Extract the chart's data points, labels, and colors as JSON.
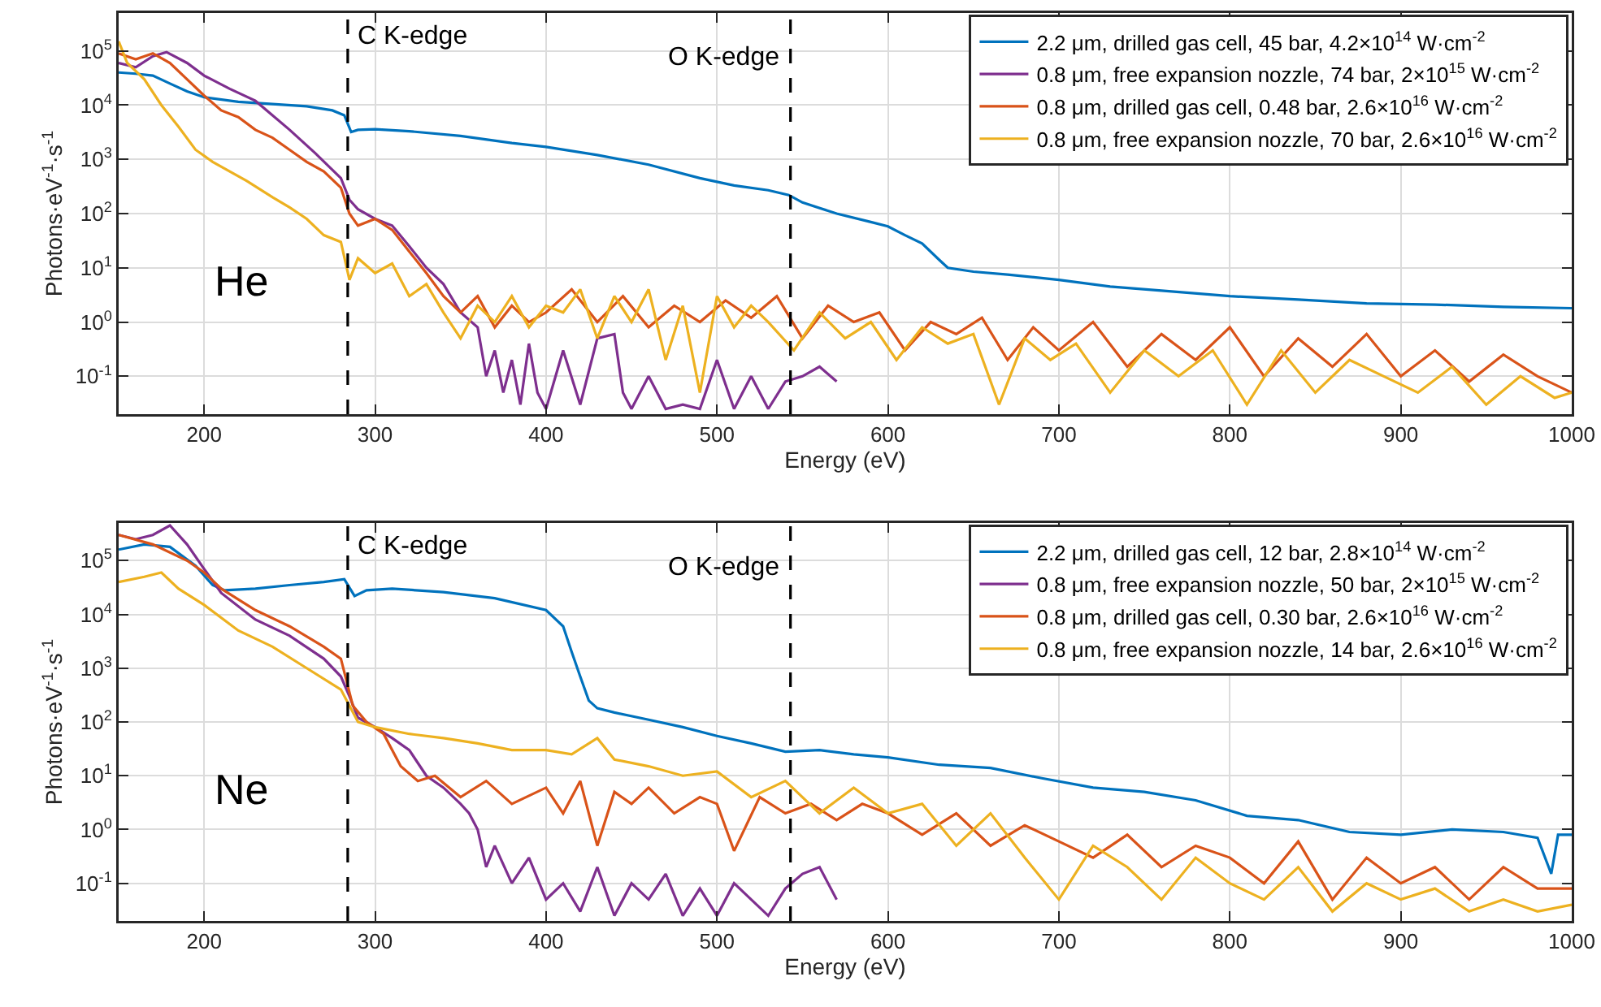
{
  "chart_data": [
    {
      "type": "line",
      "xlabel": "Energy (eV)",
      "ylabel": "Photons·eV$^{-1}$·s$^{-1}$",
      "log": "y",
      "grid": true,
      "legend": "top right",
      "xlim": [
        150,
        1000
      ],
      "xticks": [
        200,
        300,
        400,
        500,
        600,
        700,
        800,
        900,
        1000
      ],
      "ylim": [
        0.02,
        500000
      ],
      "yticks": [
        {
          "value": 0.1,
          "label": "10$^{-1}$"
        },
        {
          "value": 1,
          "label": "10$^{0}$"
        },
        {
          "value": 10,
          "label": "10$^{1}$"
        },
        {
          "value": 100,
          "label": "10$^{2}$"
        },
        {
          "value": 1000,
          "label": "10$^{3}$"
        },
        {
          "value": 10000,
          "label": "10$^{4}$"
        },
        {
          "value": 100000,
          "label": "10$^{5}$"
        }
      ],
      "ref_lines": [
        {
          "axis": "x",
          "value": 284,
          "label": "C K-edge",
          "color": "#000000",
          "line_style": "dashed"
        },
        {
          "axis": "x",
          "value": 543,
          "label": "O K-edge",
          "color": "#000000",
          "line_style": "dashed"
        }
      ],
      "annotations": [
        "He"
      ],
      "series": [
        {
          "name": "2.2 μm, drilled gas cell, 45 bar, 4.2×10$^{14}$ W·cm$^{-2}$",
          "color": "#0072bd",
          "x": [
            150,
            160,
            170,
            180,
            190,
            200,
            220,
            240,
            260,
            275,
            282,
            286,
            290,
            300,
            320,
            350,
            380,
            400,
            430,
            460,
            490,
            510,
            530,
            542,
            550,
            570,
            590,
            600,
            610,
            620,
            630,
            635,
            650,
            670,
            700,
            730,
            760,
            800,
            840,
            880,
            920,
            960,
            1000
          ],
          "values": [
            40000,
            38000,
            35000,
            25000,
            18000,
            14000,
            11500,
            10500,
            9500,
            8000,
            6500,
            3200,
            3500,
            3600,
            3300,
            2700,
            2000,
            1700,
            1200,
            800,
            450,
            330,
            270,
            220,
            160,
            100,
            70,
            58,
            40,
            28,
            14,
            10,
            8.5,
            7.5,
            6,
            4.5,
            3.8,
            3,
            2.6,
            2.2,
            2.1,
            1.9,
            1.8
          ]
        },
        {
          "name": "0.8 μm, free expansion nozzle, 74 bar, 2×10$^{15}$ W·cm$^{-2}$",
          "color": "#7e2f8e",
          "x": [
            150,
            160,
            170,
            178,
            190,
            200,
            215,
            230,
            250,
            265,
            280,
            285,
            290,
            300,
            310,
            320,
            330,
            340,
            350,
            360,
            365,
            370,
            375,
            380,
            385,
            390,
            395,
            400,
            410,
            420,
            430,
            440,
            445,
            450,
            460,
            470,
            480,
            490,
            500,
            510,
            520,
            530,
            540,
            550,
            560,
            570
          ],
          "values": [
            60000,
            50000,
            80000,
            95000,
            60000,
            35000,
            20000,
            12000,
            3500,
            1300,
            450,
            180,
            120,
            80,
            60,
            25,
            10,
            5,
            1.5,
            0.8,
            0.1,
            0.3,
            0.05,
            0.2,
            0.03,
            0.4,
            0.05,
            0.025,
            0.3,
            0.03,
            0.5,
            0.6,
            0.05,
            0.025,
            0.1,
            0.025,
            0.03,
            0.025,
            0.2,
            0.025,
            0.1,
            0.025,
            0.08,
            0.1,
            0.15,
            0.08
          ]
        },
        {
          "name": "0.8 μm, drilled gas cell, 0.48 bar, 2.6×10$^{16}$ W·cm$^{-2}$",
          "color": "#d95319",
          "x": [
            150,
            160,
            170,
            180,
            190,
            200,
            210,
            220,
            230,
            240,
            250,
            260,
            270,
            280,
            285,
            290,
            300,
            310,
            320,
            330,
            340,
            350,
            360,
            370,
            380,
            390,
            400,
            415,
            430,
            445,
            460,
            475,
            490,
            505,
            520,
            535,
            550,
            565,
            580,
            595,
            610,
            625,
            640,
            655,
            670,
            685,
            700,
            720,
            740,
            760,
            780,
            800,
            820,
            840,
            860,
            880,
            900,
            920,
            940,
            960,
            980,
            1000
          ],
          "values": [
            90000,
            70000,
            90000,
            60000,
            30000,
            15000,
            8000,
            6000,
            3500,
            2500,
            1500,
            900,
            600,
            300,
            100,
            60,
            80,
            50,
            20,
            8,
            3,
            1.5,
            3,
            0.8,
            2,
            1,
            1.5,
            4,
            1,
            3,
            0.8,
            2,
            1,
            2.5,
            1.2,
            3,
            0.5,
            2,
            1,
            1.5,
            0.3,
            1,
            0.6,
            1.2,
            0.2,
            0.8,
            0.3,
            1,
            0.15,
            0.6,
            0.2,
            0.8,
            0.1,
            0.5,
            0.15,
            0.6,
            0.1,
            0.3,
            0.08,
            0.25,
            0.1,
            0.05
          ]
        },
        {
          "name": "0.8 μm, free expansion nozzle, 70 bar, 2.6×10$^{16}$ W·cm$^{-2}$",
          "color": "#edb120",
          "x": [
            150,
            155,
            165,
            175,
            185,
            195,
            205,
            215,
            225,
            240,
            250,
            260,
            270,
            280,
            285,
            290,
            300,
            310,
            320,
            330,
            340,
            350,
            360,
            370,
            380,
            390,
            400,
            410,
            420,
            430,
            440,
            450,
            460,
            470,
            480,
            490,
            500,
            510,
            520,
            530,
            545,
            560,
            575,
            590,
            605,
            620,
            635,
            650,
            665,
            680,
            695,
            710,
            730,
            750,
            770,
            790,
            810,
            830,
            850,
            870,
            890,
            910,
            930,
            950,
            970,
            990,
            1000
          ],
          "values": [
            150000,
            60000,
            30000,
            10000,
            4000,
            1500,
            900,
            600,
            400,
            200,
            130,
            80,
            40,
            30,
            6,
            15,
            8,
            12,
            3,
            5,
            1.5,
            0.5,
            2,
            1,
            3,
            0.8,
            2,
            1.5,
            4,
            0.5,
            3,
            1,
            4,
            0.2,
            2,
            0.05,
            3,
            0.8,
            2,
            1,
            0.3,
            1.5,
            0.5,
            1,
            0.2,
            0.8,
            0.4,
            0.6,
            0.03,
            0.5,
            0.2,
            0.4,
            0.05,
            0.3,
            0.1,
            0.3,
            0.03,
            0.3,
            0.05,
            0.2,
            0.1,
            0.05,
            0.15,
            0.03,
            0.1,
            0.04,
            0.05
          ]
        }
      ]
    },
    {
      "type": "line",
      "xlabel": "Energy (eV)",
      "ylabel": "Photons·eV$^{-1}$·s$^{-1}$",
      "log": "y",
      "grid": true,
      "legend": "top right",
      "xlim": [
        150,
        1000
      ],
      "xticks": [
        200,
        300,
        400,
        500,
        600,
        700,
        800,
        900,
        1000
      ],
      "ylim": [
        0.02,
        500000
      ],
      "yticks": [
        {
          "value": 0.1,
          "label": "10$^{-1}$"
        },
        {
          "value": 1,
          "label": "10$^{0}$"
        },
        {
          "value": 10,
          "label": "10$^{1}$"
        },
        {
          "value": 100,
          "label": "10$^{2}$"
        },
        {
          "value": 1000,
          "label": "10$^{3}$"
        },
        {
          "value": 10000,
          "label": "10$^{4}$"
        },
        {
          "value": 100000,
          "label": "10$^{5}$"
        }
      ],
      "ref_lines": [
        {
          "axis": "x",
          "value": 284,
          "label": "C K-edge",
          "color": "#000000",
          "line_style": "dashed"
        },
        {
          "axis": "x",
          "value": 543,
          "label": "O K-edge",
          "color": "#000000",
          "line_style": "dashed"
        }
      ],
      "annotations": [
        "Ne"
      ],
      "series": [
        {
          "name": "2.2 μm, drilled gas cell, 12 bar, 2.8×10$^{14}$ W·cm$^{-2}$",
          "color": "#0072bd",
          "x": [
            150,
            165,
            180,
            195,
            205,
            212,
            230,
            250,
            270,
            282,
            288,
            295,
            310,
            340,
            370,
            400,
            410,
            415,
            420,
            425,
            430,
            440,
            460,
            480,
            500,
            520,
            540,
            560,
            580,
            600,
            630,
            660,
            690,
            720,
            750,
            780,
            810,
            840,
            870,
            900,
            930,
            960,
            980,
            988,
            992,
            1000
          ],
          "values": [
            160000,
            200000,
            180000,
            80000,
            35000,
            28000,
            30000,
            35000,
            40000,
            45000,
            22000,
            28000,
            30000,
            26000,
            20000,
            12000,
            6000,
            2000,
            700,
            250,
            180,
            150,
            110,
            80,
            55,
            40,
            28,
            30,
            25,
            22,
            16,
            14,
            9,
            6,
            5,
            3.5,
            1.8,
            1.5,
            0.9,
            0.8,
            1,
            0.9,
            0.7,
            0.15,
            0.8,
            0.8
          ]
        },
        {
          "name": "0.8 μm, free expansion nozzle, 50 bar, 2×10$^{15}$ W·cm$^{-2}$",
          "color": "#7e2f8e",
          "x": [
            150,
            160,
            170,
            180,
            190,
            200,
            210,
            230,
            250,
            270,
            280,
            285,
            290,
            300,
            310,
            320,
            330,
            340,
            350,
            355,
            360,
            365,
            370,
            380,
            390,
            400,
            410,
            420,
            430,
            440,
            450,
            460,
            470,
            480,
            490,
            500,
            510,
            520,
            530,
            540,
            550,
            560,
            570
          ],
          "values": [
            300000,
            250000,
            300000,
            450000,
            200000,
            70000,
            25000,
            8000,
            4000,
            1500,
            700,
            300,
            120,
            80,
            50,
            30,
            10,
            6,
            3,
            2,
            1,
            0.2,
            0.5,
            0.1,
            0.3,
            0.05,
            0.1,
            0.03,
            0.2,
            0.025,
            0.1,
            0.05,
            0.15,
            0.025,
            0.08,
            0.025,
            0.1,
            0.05,
            0.025,
            0.08,
            0.15,
            0.2,
            0.05
          ]
        },
        {
          "name": "0.8 μm, drilled gas cell, 0.30 bar, 2.6×10$^{16}$ W·cm$^{-2}$",
          "color": "#d95319",
          "x": [
            150,
            170,
            190,
            200,
            210,
            230,
            250,
            270,
            280,
            287,
            295,
            305,
            315,
            325,
            335,
            350,
            365,
            380,
            400,
            410,
            420,
            430,
            440,
            450,
            460,
            475,
            490,
            500,
            510,
            525,
            540,
            555,
            570,
            585,
            600,
            620,
            640,
            660,
            680,
            700,
            720,
            740,
            760,
            780,
            800,
            820,
            840,
            860,
            880,
            900,
            920,
            940,
            960,
            980,
            1000
          ],
          "values": [
            300000,
            200000,
            100000,
            60000,
            30000,
            12000,
            6000,
            2500,
            1500,
            200,
            100,
            60,
            15,
            8,
            10,
            4,
            8,
            3,
            6,
            2,
            8,
            0.5,
            5,
            3,
            6,
            2,
            4,
            3,
            0.4,
            4,
            2,
            3,
            1.5,
            3,
            2,
            0.8,
            2,
            0.5,
            1.2,
            0.6,
            0.3,
            0.8,
            0.2,
            0.5,
            0.3,
            0.1,
            0.6,
            0.05,
            0.3,
            0.1,
            0.2,
            0.05,
            0.2,
            0.08,
            0.08
          ]
        },
        {
          "name": "0.8 μm, free expansion nozzle, 14 bar, 2.6×10$^{16}$ W·cm$^{-2}$",
          "color": "#edb120",
          "x": [
            150,
            165,
            175,
            185,
            200,
            220,
            240,
            260,
            280,
            290,
            300,
            320,
            340,
            360,
            380,
            400,
            415,
            430,
            440,
            460,
            480,
            500,
            520,
            540,
            560,
            580,
            600,
            620,
            640,
            660,
            680,
            700,
            720,
            740,
            760,
            780,
            800,
            820,
            840,
            860,
            880,
            900,
            920,
            940,
            960,
            980,
            1000
          ],
          "values": [
            40000,
            50000,
            60000,
            30000,
            15000,
            5000,
            2500,
            1000,
            400,
            100,
            80,
            60,
            50,
            40,
            30,
            30,
            25,
            50,
            20,
            15,
            10,
            12,
            4,
            8,
            2,
            6,
            2,
            3,
            0.5,
            2,
            0.3,
            0.05,
            0.5,
            0.2,
            0.05,
            0.3,
            0.1,
            0.05,
            0.2,
            0.03,
            0.1,
            0.05,
            0.08,
            0.03,
            0.05,
            0.03,
            0.04
          ]
        }
      ]
    }
  ]
}
